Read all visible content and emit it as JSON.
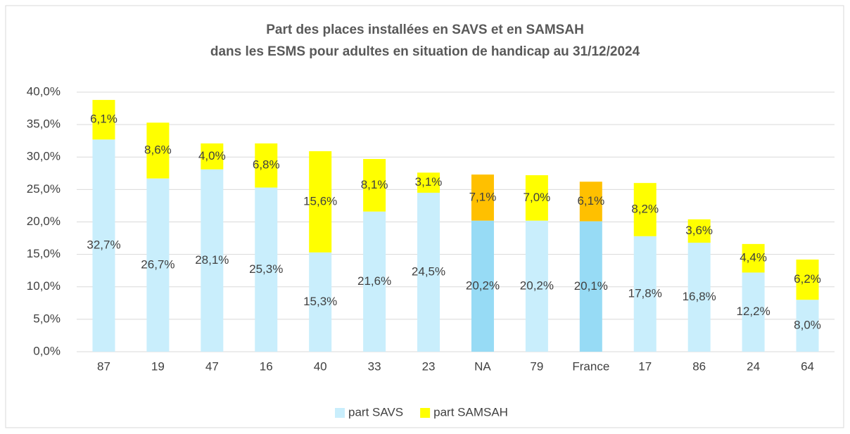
{
  "chart_data": {
    "type": "stacked_bar",
    "title": [
      "Part des places installées en SAVS et en SAMSAH",
      "dans les ESMS pour adultes en situation de handicap au 31/12/2024"
    ],
    "categories": [
      "87",
      "19",
      "47",
      "16",
      "40",
      "33",
      "23",
      "NA",
      "79",
      "France",
      "17",
      "86",
      "24",
      "64"
    ],
    "series": [
      {
        "name": "part SAVS",
        "color": "#c9eefc",
        "colors": [
          "#c9eefc",
          "#c9eefc",
          "#c9eefc",
          "#c9eefc",
          "#c9eefc",
          "#c9eefc",
          "#c9eefc",
          "#97dbf5",
          "#c9eefc",
          "#97dbf5",
          "#c9eefc",
          "#c9eefc",
          "#c9eefc",
          "#c9eefc"
        ],
        "values": [
          32.7,
          26.7,
          28.1,
          25.3,
          15.3,
          21.6,
          24.5,
          20.2,
          20.2,
          20.1,
          17.8,
          16.8,
          12.2,
          8.0
        ],
        "value_labels": [
          "32,7%",
          "26,7%",
          "28,1%",
          "25,3%",
          "15,3%",
          "21,6%",
          "24,5%",
          "20,2%",
          "20,2%",
          "20,1%",
          "17,8%",
          "16,8%",
          "12,2%",
          "8,0%"
        ]
      },
      {
        "name": "part SAMSAH",
        "color": "#ffff00",
        "colors": [
          "#ffff00",
          "#ffff00",
          "#ffff00",
          "#ffff00",
          "#ffff00",
          "#ffff00",
          "#ffff00",
          "#ffc000",
          "#ffff00",
          "#ffc000",
          "#ffff00",
          "#ffff00",
          "#ffff00",
          "#ffff00"
        ],
        "values": [
          6.1,
          8.6,
          4.0,
          6.8,
          15.6,
          8.1,
          3.1,
          7.1,
          7.0,
          6.1,
          8.2,
          3.6,
          4.4,
          6.2
        ],
        "value_labels": [
          "6,1%",
          "8,6%",
          "4,0%",
          "6,8%",
          "15,6%",
          "8,1%",
          "3,1%",
          "7,1%",
          "7,0%",
          "6,1%",
          "8,2%",
          "3,6%",
          "4,4%",
          "6,2%"
        ]
      }
    ],
    "ylim": [
      0,
      40
    ],
    "yticks": [
      {
        "value": 0,
        "label": "0,0%"
      },
      {
        "value": 5,
        "label": "5,0%"
      },
      {
        "value": 10,
        "label": "10,0%"
      },
      {
        "value": 15,
        "label": "15,0%"
      },
      {
        "value": 20,
        "label": "20,0%"
      },
      {
        "value": 25,
        "label": "25,0%"
      },
      {
        "value": 30,
        "label": "30,0%"
      },
      {
        "value": 35,
        "label": "35,0%"
      },
      {
        "value": 40,
        "label": "40,0%"
      }
    ],
    "grid": true,
    "legend": "bottom"
  }
}
